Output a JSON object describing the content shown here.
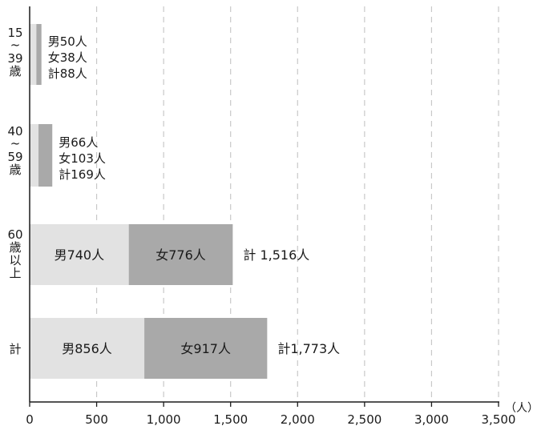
{
  "chart_data": {
    "type": "bar",
    "orientation": "horizontal",
    "stacked": true,
    "xlim": [
      0,
      3500
    ],
    "x_ticks": [
      0,
      500,
      1000,
      1500,
      2000,
      2500,
      3000,
      3500
    ],
    "x_tick_labels": [
      "0",
      "500",
      "1,000",
      "1,500",
      "2,000",
      "2,500",
      "3,000",
      "3,500"
    ],
    "x_unit": "（人）",
    "grid": "vertical dashed",
    "colors": {
      "male": "#e2e2e2",
      "female": "#a9a9a9",
      "axis": "#1a1a1a",
      "grid": "#c8c8c8"
    },
    "categories": [
      {
        "label_lines": [
          "15",
          "~",
          "39",
          "歳"
        ],
        "male": 50,
        "female": 38,
        "total": 88,
        "male_label": "男50人",
        "female_label": "女38人",
        "total_label": "計88人",
        "label_layout": "stacked"
      },
      {
        "label_lines": [
          "40",
          "~",
          "59",
          "歳"
        ],
        "male": 66,
        "female": 103,
        "total": 169,
        "male_label": "男66人",
        "female_label": "女103人",
        "total_label": "計169人",
        "label_layout": "stacked"
      },
      {
        "label_lines": [
          "60",
          "歳",
          "以",
          "上"
        ],
        "male": 740,
        "female": 776,
        "total": 1516,
        "male_label": "男740人",
        "female_label": "女776人",
        "total_label": "計 1,516人",
        "label_layout": "inline"
      },
      {
        "label_lines": [
          "計"
        ],
        "male": 856,
        "female": 917,
        "total": 1773,
        "male_label": "男856人",
        "female_label": "女917人",
        "total_label": "計1,773人",
        "label_layout": "inline"
      }
    ]
  }
}
